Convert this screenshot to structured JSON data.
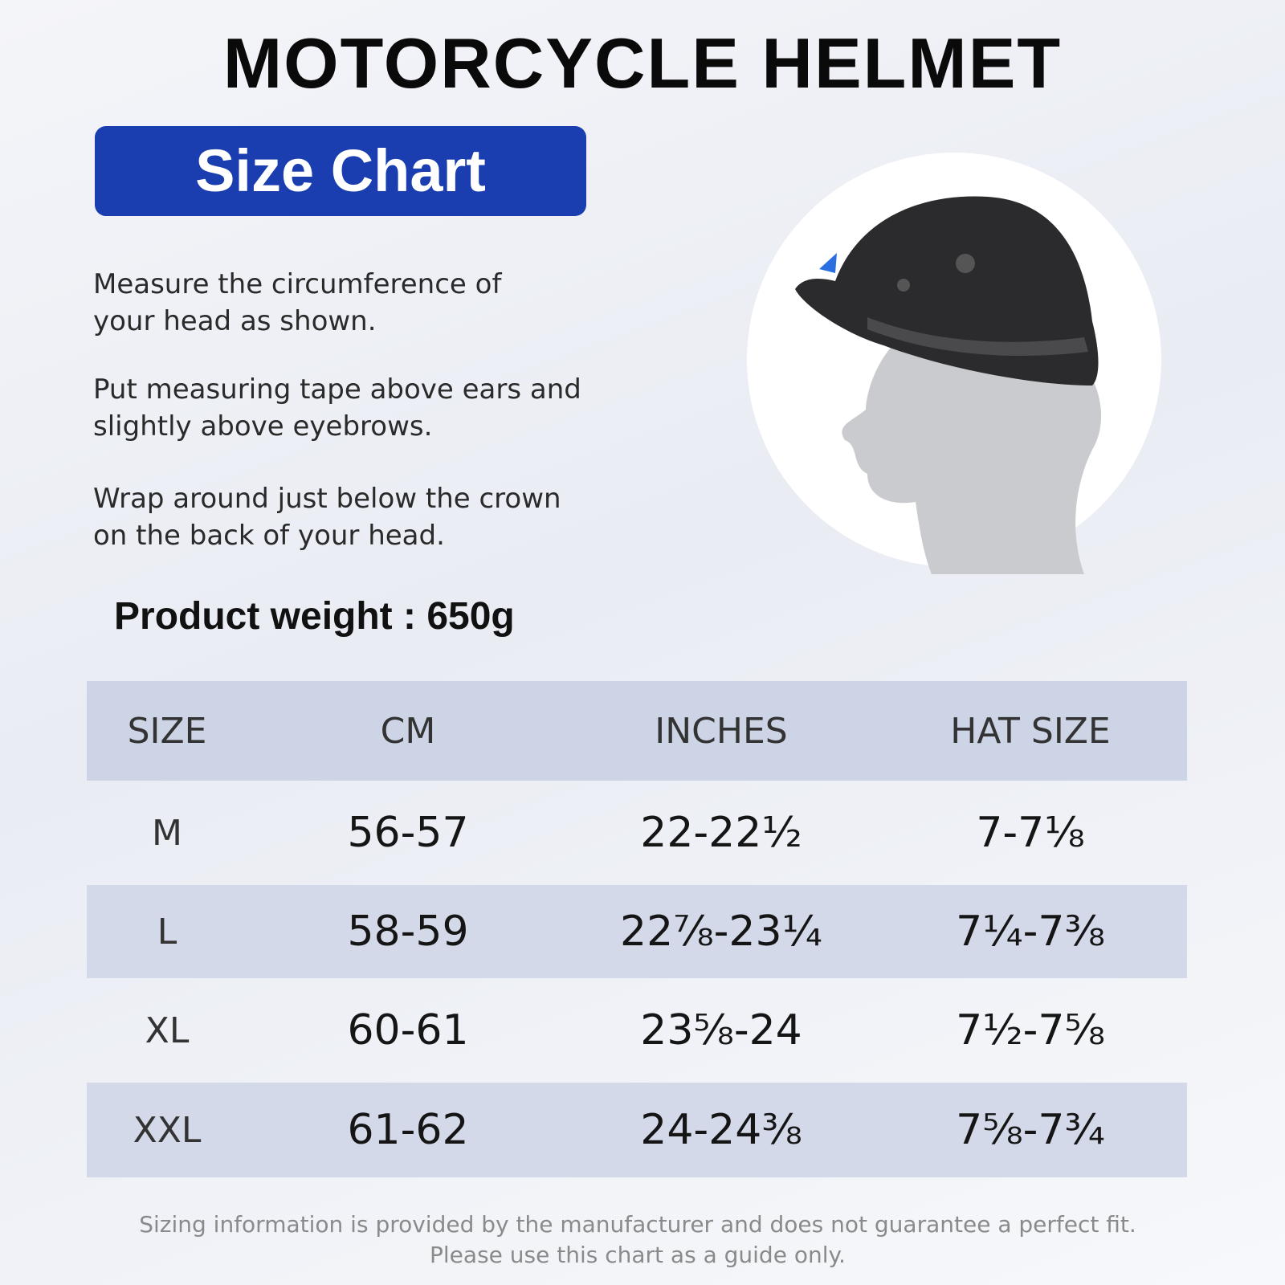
{
  "header": {
    "title": "MOTORCYCLE HELMET",
    "badge": "Size Chart"
  },
  "instructions": [
    [
      "Measure the circumference of",
      "your head as shown."
    ],
    [
      "Put measuring tape above ears and",
      "slightly above eyebrows."
    ],
    [
      "Wrap around just below the crown",
      "on the back of your head."
    ]
  ],
  "weight": "Product weight : 650g",
  "table": {
    "header": [
      "SIZE",
      "CM",
      "INCHES",
      "HAT SIZE"
    ],
    "rows": [
      [
        "M",
        "56-57",
        "22-22½",
        "7-7⅛"
      ],
      [
        "L",
        "58-59",
        "22⅞-23¼",
        "7¼-7⅜"
      ],
      [
        "XL",
        "60-61",
        "23⅝-24",
        "7½-7⅝"
      ],
      [
        "XXL",
        "61-62",
        "24-24⅜",
        "7⅝-7¾"
      ]
    ]
  },
  "disclaimer": [
    "Sizing information is provided by the manufacturer and does not guarantee a perfect fit.",
    "Please use this chart as a guide only."
  ]
}
